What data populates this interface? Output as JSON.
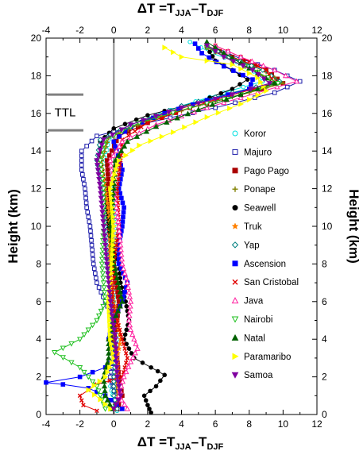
{
  "chart_data": {
    "type": "line",
    "xlabel": "ΔT =T_JJA–T_DJF",
    "xlabel_parts": {
      "main": "ΔT =T",
      "sub1": "JJA",
      "mid": "–T",
      "sub2": "DJF"
    },
    "ylabel_left": "Height (km)",
    "ylabel_right": "Height (km)",
    "xlim": [
      -4,
      12
    ],
    "ylim": [
      0,
      20
    ],
    "xticks": [
      -4,
      -2,
      0,
      2,
      4,
      6,
      8,
      10,
      12
    ],
    "yticks": [
      0,
      2,
      4,
      6,
      8,
      10,
      12,
      14,
      16,
      18,
      20
    ],
    "zero_line_x": 0,
    "annotation": {
      "label": "TTL",
      "bottom_km": 15.1,
      "top_km": 17.0
    },
    "legend_position": "right",
    "series": [
      {
        "name": "Koror",
        "color": "#00e0e0",
        "marker": "circle-open",
        "points": [
          [
            0.2,
            0.2
          ],
          [
            0.0,
            0.8
          ],
          [
            -0.2,
            1.5
          ],
          [
            0.1,
            2.5
          ],
          [
            0.2,
            4
          ],
          [
            0.0,
            6
          ],
          [
            0.1,
            8
          ],
          [
            0.2,
            10
          ],
          [
            0.0,
            12
          ],
          [
            -0.5,
            13.5
          ],
          [
            -0.3,
            14.6
          ],
          [
            1.5,
            15.5
          ],
          [
            4.0,
            16.4
          ],
          [
            6.5,
            17.1
          ],
          [
            8.8,
            17.7
          ],
          [
            8.0,
            18.5
          ],
          [
            5.8,
            19.2
          ],
          [
            4.5,
            19.8
          ]
        ]
      },
      {
        "name": "Majuro",
        "color": "#1c1caa",
        "marker": "square-open",
        "points": [
          [
            0.3,
            0.3
          ],
          [
            0.1,
            1
          ],
          [
            -0.2,
            2
          ],
          [
            0.0,
            3
          ],
          [
            -0.1,
            4
          ],
          [
            0.0,
            5
          ],
          [
            -0.5,
            6
          ],
          [
            -1.0,
            7
          ],
          [
            -1.2,
            8
          ],
          [
            -1.3,
            9
          ],
          [
            -1.4,
            10
          ],
          [
            -1.6,
            11
          ],
          [
            -1.7,
            12
          ],
          [
            -1.9,
            13
          ],
          [
            -1.9,
            14
          ],
          [
            -1.0,
            14.8
          ],
          [
            2.0,
            15.5
          ],
          [
            6.0,
            16.3
          ],
          [
            9.5,
            17.1
          ],
          [
            11.0,
            17.7
          ],
          [
            9.5,
            18.3
          ],
          [
            7.5,
            18.9
          ],
          [
            6.0,
            19.5
          ]
        ]
      },
      {
        "name": "Pago Pago",
        "color": "#aa0000",
        "marker": "square-filled",
        "points": [
          [
            0.2,
            0.3
          ],
          [
            0.5,
            1
          ],
          [
            0.3,
            2
          ],
          [
            0.2,
            3
          ],
          [
            0.0,
            4
          ],
          [
            0.2,
            5
          ],
          [
            0.3,
            6
          ],
          [
            0.0,
            8
          ],
          [
            -0.3,
            10
          ],
          [
            -0.3,
            12
          ],
          [
            -0.4,
            13.5
          ],
          [
            0.3,
            14.8
          ],
          [
            2.0,
            15.5
          ],
          [
            4.5,
            16.3
          ],
          [
            7.5,
            17.0
          ],
          [
            10.0,
            17.6
          ],
          [
            9.0,
            18.3
          ],
          [
            7.0,
            19.0
          ],
          [
            5.5,
            19.6
          ]
        ]
      },
      {
        "name": "Ponape",
        "color": "#808000",
        "marker": "plus",
        "points": [
          [
            0.0,
            0.3
          ],
          [
            0.2,
            1
          ],
          [
            0.1,
            2
          ],
          [
            0.0,
            4
          ],
          [
            -0.2,
            6
          ],
          [
            -0.2,
            8
          ],
          [
            -0.3,
            10
          ],
          [
            -0.6,
            12
          ],
          [
            -0.7,
            13.5
          ],
          [
            -0.3,
            14.7
          ],
          [
            2.0,
            15.6
          ],
          [
            5.0,
            16.4
          ],
          [
            8.0,
            17.1
          ],
          [
            10.0,
            17.6
          ],
          [
            9.0,
            18.2
          ],
          [
            7.5,
            18.8
          ],
          [
            5.5,
            19.5
          ]
        ]
      },
      {
        "name": "Seawell",
        "color": "#000000",
        "marker": "circle-filled",
        "points": [
          [
            2.2,
            0.1
          ],
          [
            2.0,
            0.5
          ],
          [
            1.8,
            1
          ],
          [
            2.5,
            1.5
          ],
          [
            3.0,
            2.1
          ],
          [
            2.2,
            2.5
          ],
          [
            1.2,
            3
          ],
          [
            0.6,
            4
          ],
          [
            0.9,
            5
          ],
          [
            0.7,
            6
          ],
          [
            0.4,
            7
          ],
          [
            0.3,
            8
          ],
          [
            -0.1,
            9
          ],
          [
            -0.3,
            10
          ],
          [
            -0.5,
            12
          ],
          [
            -0.8,
            13.5
          ],
          [
            -0.8,
            14.5
          ],
          [
            0.0,
            15.2
          ],
          [
            2.0,
            15.9
          ],
          [
            5.0,
            16.6
          ],
          [
            7.0,
            17.3
          ],
          [
            7.9,
            17.8
          ],
          [
            7.0,
            18.3
          ],
          [
            6.0,
            18.8
          ],
          [
            5.5,
            19.5
          ]
        ]
      },
      {
        "name": "Truk",
        "color": "#ff8000",
        "marker": "star",
        "points": [
          [
            0.1,
            0.3
          ],
          [
            0.3,
            1
          ],
          [
            0.2,
            2
          ],
          [
            0.2,
            3
          ],
          [
            0.4,
            4
          ],
          [
            0.0,
            6
          ],
          [
            -0.3,
            8
          ],
          [
            -0.2,
            10
          ],
          [
            -0.5,
            12
          ],
          [
            -0.8,
            13.5
          ],
          [
            -0.5,
            14.6
          ],
          [
            1.5,
            15.5
          ],
          [
            4.5,
            16.4
          ],
          [
            7.5,
            17.1
          ],
          [
            9.5,
            17.6
          ],
          [
            8.5,
            18.2
          ],
          [
            7.0,
            18.8
          ],
          [
            5.5,
            19.5
          ]
        ]
      },
      {
        "name": "Yap",
        "color": "#008080",
        "marker": "diamond-open",
        "points": [
          [
            0.2,
            0.3
          ],
          [
            0.0,
            1
          ],
          [
            0.0,
            2
          ],
          [
            0.1,
            3
          ],
          [
            -0.2,
            4
          ],
          [
            -0.1,
            6
          ],
          [
            -0.4,
            8
          ],
          [
            -0.5,
            10
          ],
          [
            -0.7,
            12
          ],
          [
            -1.0,
            13.5
          ],
          [
            -0.8,
            14.6
          ],
          [
            1.0,
            15.4
          ],
          [
            4.0,
            16.4
          ],
          [
            7.0,
            17.1
          ],
          [
            9.8,
            17.7
          ],
          [
            8.8,
            18.3
          ],
          [
            6.8,
            19.0
          ],
          [
            5.5,
            19.6
          ]
        ]
      },
      {
        "name": "Ascension",
        "color": "#0000ff",
        "marker": "square-filled",
        "points": [
          [
            0.5,
            0.3
          ],
          [
            -0.5,
            1
          ],
          [
            -1.5,
            1.4
          ],
          [
            -3.0,
            1.6
          ],
          [
            -4.0,
            1.7
          ],
          [
            -2.0,
            2
          ],
          [
            -0.5,
            2.5
          ],
          [
            0.0,
            3
          ],
          [
            -0.3,
            4
          ],
          [
            0.0,
            5
          ],
          [
            0.5,
            6
          ],
          [
            0.8,
            7
          ],
          [
            0.3,
            8
          ],
          [
            0.3,
            9
          ],
          [
            0.5,
            10
          ],
          [
            0.6,
            11
          ],
          [
            0.3,
            12
          ],
          [
            0.5,
            13
          ],
          [
            0.0,
            14.5
          ],
          [
            1.0,
            15.3
          ],
          [
            3.0,
            16.0
          ],
          [
            5.5,
            16.7
          ],
          [
            8.0,
            17.3
          ],
          [
            8.2,
            17.8
          ],
          [
            6.5,
            18.5
          ],
          [
            5.2,
            19.2
          ],
          [
            4.8,
            19.7
          ]
        ]
      },
      {
        "name": "San Cristobal",
        "color": "#e00000",
        "marker": "x",
        "points": [
          [
            -1.0,
            0.2
          ],
          [
            -1.8,
            0.5
          ],
          [
            -2.0,
            1
          ],
          [
            -1.0,
            1.6
          ],
          [
            0.5,
            2
          ],
          [
            0.8,
            3
          ],
          [
            0.5,
            4
          ],
          [
            0.2,
            5
          ],
          [
            -0.1,
            6
          ],
          [
            0.0,
            8
          ],
          [
            0.3,
            10
          ],
          [
            0.2,
            12
          ],
          [
            0.4,
            13.5
          ],
          [
            0.5,
            14.6
          ],
          [
            2.0,
            15.5
          ],
          [
            4.5,
            16.3
          ],
          [
            7.0,
            17.0
          ],
          [
            9.5,
            17.6
          ],
          [
            9.0,
            18.3
          ],
          [
            7.5,
            19.0
          ],
          [
            6.0,
            19.6
          ]
        ]
      },
      {
        "name": "Java",
        "color": "#ff20a0",
        "marker": "triangle-open",
        "points": [
          [
            0.8,
            0.3
          ],
          [
            0.3,
            1
          ],
          [
            0.6,
            2
          ],
          [
            1.0,
            2.8
          ],
          [
            1.4,
            3.5
          ],
          [
            1.0,
            4.5
          ],
          [
            0.9,
            5
          ],
          [
            1.0,
            6
          ],
          [
            0.8,
            7
          ],
          [
            0.5,
            8
          ],
          [
            0.3,
            10
          ],
          [
            0.0,
            12
          ],
          [
            -0.2,
            13.5
          ],
          [
            0.5,
            14.5
          ],
          [
            2.5,
            15.4
          ],
          [
            5.5,
            16.3
          ],
          [
            8.5,
            17.1
          ],
          [
            10.8,
            17.7
          ],
          [
            9.5,
            18.3
          ],
          [
            7.5,
            19.0
          ],
          [
            6.0,
            19.6
          ]
        ]
      },
      {
        "name": "Nairobi",
        "color": "#20c020",
        "marker": "triangle-down-open",
        "points": [
          [
            -0.5,
            0.3
          ],
          [
            -1.0,
            1.5
          ],
          [
            -2.0,
            2.5
          ],
          [
            -3.5,
            3.3
          ],
          [
            -2.0,
            4
          ],
          [
            -1.0,
            5
          ],
          [
            -0.5,
            6
          ],
          [
            -0.7,
            8
          ],
          [
            -0.6,
            10
          ],
          [
            -0.6,
            12
          ],
          [
            -0.8,
            13.5
          ],
          [
            -0.5,
            14.6
          ],
          [
            1.5,
            15.5
          ],
          [
            4.5,
            16.3
          ],
          [
            7.5,
            17.0
          ],
          [
            9.7,
            17.6
          ],
          [
            8.5,
            18.2
          ],
          [
            7.0,
            18.8
          ],
          [
            5.5,
            19.5
          ]
        ]
      },
      {
        "name": "Natal",
        "color": "#006000",
        "marker": "triangle-filled",
        "points": [
          [
            -0.1,
            0.3
          ],
          [
            -0.5,
            1
          ],
          [
            -0.6,
            2
          ],
          [
            -0.3,
            3
          ],
          [
            -0.3,
            4
          ],
          [
            0.0,
            5
          ],
          [
            0.5,
            6
          ],
          [
            0.0,
            8
          ],
          [
            -0.2,
            10
          ],
          [
            0.0,
            12
          ],
          [
            0.1,
            13.5
          ],
          [
            0.8,
            14.5
          ],
          [
            2.5,
            15.3
          ],
          [
            5.0,
            16.2
          ],
          [
            7.5,
            17.0
          ],
          [
            9.5,
            17.6
          ],
          [
            8.0,
            18.4
          ],
          [
            6.5,
            19.2
          ],
          [
            5.5,
            19.8
          ]
        ]
      },
      {
        "name": "Paramaribo",
        "color": "#ffff00",
        "marker": "triangle-right",
        "points": [
          [
            -0.2,
            0.3
          ],
          [
            -0.8,
            0.8
          ],
          [
            -1.5,
            1.3
          ],
          [
            -0.5,
            2
          ],
          [
            0.0,
            3
          ],
          [
            -0.2,
            4
          ],
          [
            -0.3,
            6
          ],
          [
            -0.1,
            8
          ],
          [
            0.0,
            10
          ],
          [
            -0.2,
            12
          ],
          [
            0.3,
            13.5
          ],
          [
            1.5,
            14.3
          ],
          [
            3.5,
            15.0
          ],
          [
            5.5,
            15.8
          ],
          [
            7.5,
            16.5
          ],
          [
            9.0,
            17.2
          ],
          [
            8.5,
            17.9
          ],
          [
            7.0,
            18.6
          ],
          [
            4.0,
            19.0
          ],
          [
            3.0,
            19.5
          ]
        ]
      },
      {
        "name": "Samoa",
        "color": "#8000a0",
        "marker": "triangle-down-filled",
        "points": [
          [
            0.0,
            0.3
          ],
          [
            0.4,
            1
          ],
          [
            0.2,
            2
          ],
          [
            0.1,
            4
          ],
          [
            -0.2,
            6
          ],
          [
            -0.4,
            8
          ],
          [
            -0.6,
            10
          ],
          [
            -0.8,
            12
          ],
          [
            -1.0,
            13.5
          ],
          [
            -0.6,
            14.6
          ],
          [
            1.0,
            15.4
          ],
          [
            4.0,
            16.3
          ],
          [
            7.0,
            17.0
          ],
          [
            9.2,
            17.6
          ],
          [
            8.2,
            18.3
          ],
          [
            6.5,
            19.0
          ],
          [
            5.5,
            19.6
          ]
        ]
      }
    ]
  }
}
